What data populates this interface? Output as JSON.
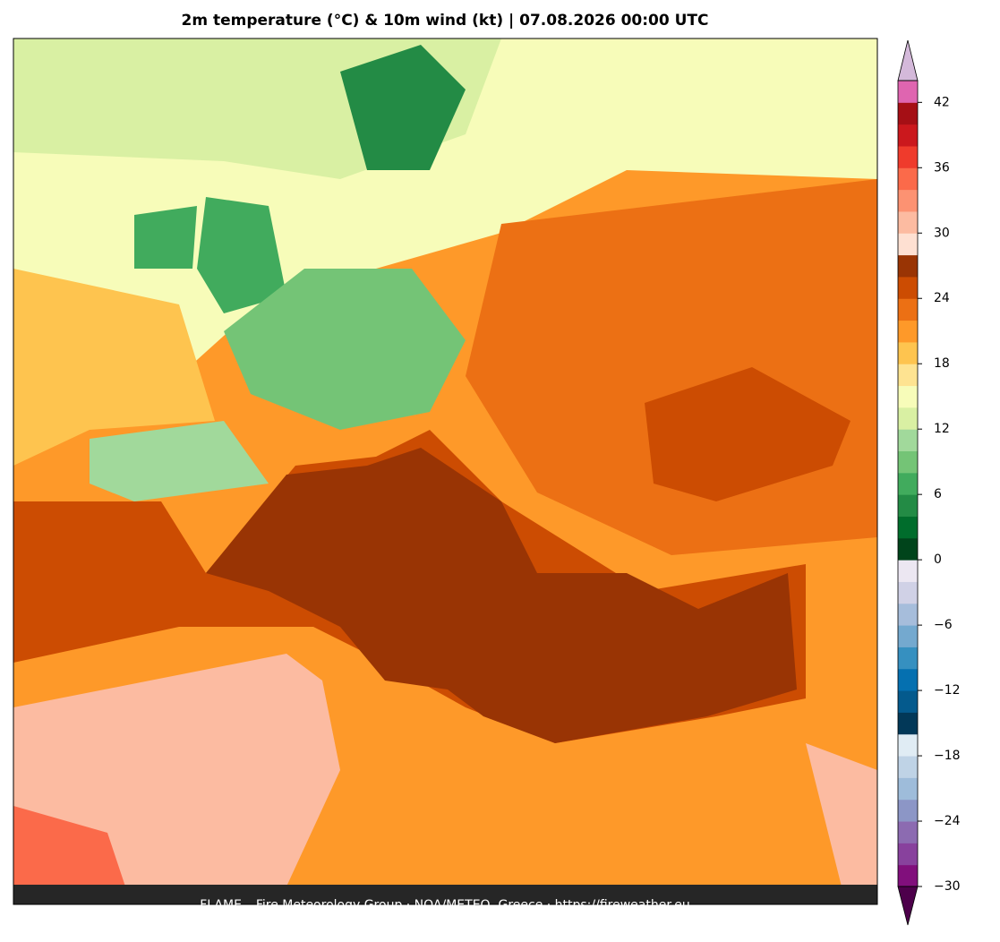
{
  "header": {
    "title": "2m temperature (°C) & 10m wind (kt)  |  07.08.2026 00:00 UTC"
  },
  "footer": {
    "text": "FLAME – Fire Meteorology Group · NOA/METEO, Greece · https://fireweather.eu"
  },
  "colorbar": {
    "levels": [
      -30,
      -28,
      -26,
      -24,
      -22,
      -20,
      -18,
      -16,
      -14,
      -12,
      -10,
      -8,
      -6,
      -4,
      -2,
      0,
      2,
      4,
      6,
      8,
      10,
      12,
      14,
      16,
      18,
      20,
      22,
      24,
      26,
      28,
      30,
      32,
      34,
      36,
      38,
      40,
      42,
      44
    ],
    "colors": [
      "#810f7c",
      "#88419d",
      "#8c6bb1",
      "#8c96c6",
      "#9ebcda",
      "#bfd3e6",
      "#e0ecf4",
      "#023858",
      "#045a8d",
      "#0570b0",
      "#3690c0",
      "#74a9cf",
      "#a6bddb",
      "#d0d1e6",
      "#ece7f2",
      "#00441b",
      "#006d2c",
      "#238b45",
      "#41ab5d",
      "#74c476",
      "#a1d99b",
      "#d9f0a3",
      "#f7fcb9",
      "#fee391",
      "#fec44f",
      "#fe9929",
      "#ec7014",
      "#cc4c02",
      "#993404",
      "#fee0d2",
      "#fcbba1",
      "#fc9272",
      "#fb6a4a",
      "#ef3b2c",
      "#cb181d",
      "#a50f15",
      "#df65b0"
    ],
    "under_color": "#4d004b",
    "over_color": "#d4b9da",
    "ticks": [
      {
        "value": -30,
        "label": "−30"
      },
      {
        "value": -24,
        "label": "−24"
      },
      {
        "value": -18,
        "label": "−18"
      },
      {
        "value": -12,
        "label": "−12"
      },
      {
        "value": -6,
        "label": "−6"
      },
      0,
      6,
      12,
      18,
      24,
      30,
      36,
      42
    ]
  }
}
